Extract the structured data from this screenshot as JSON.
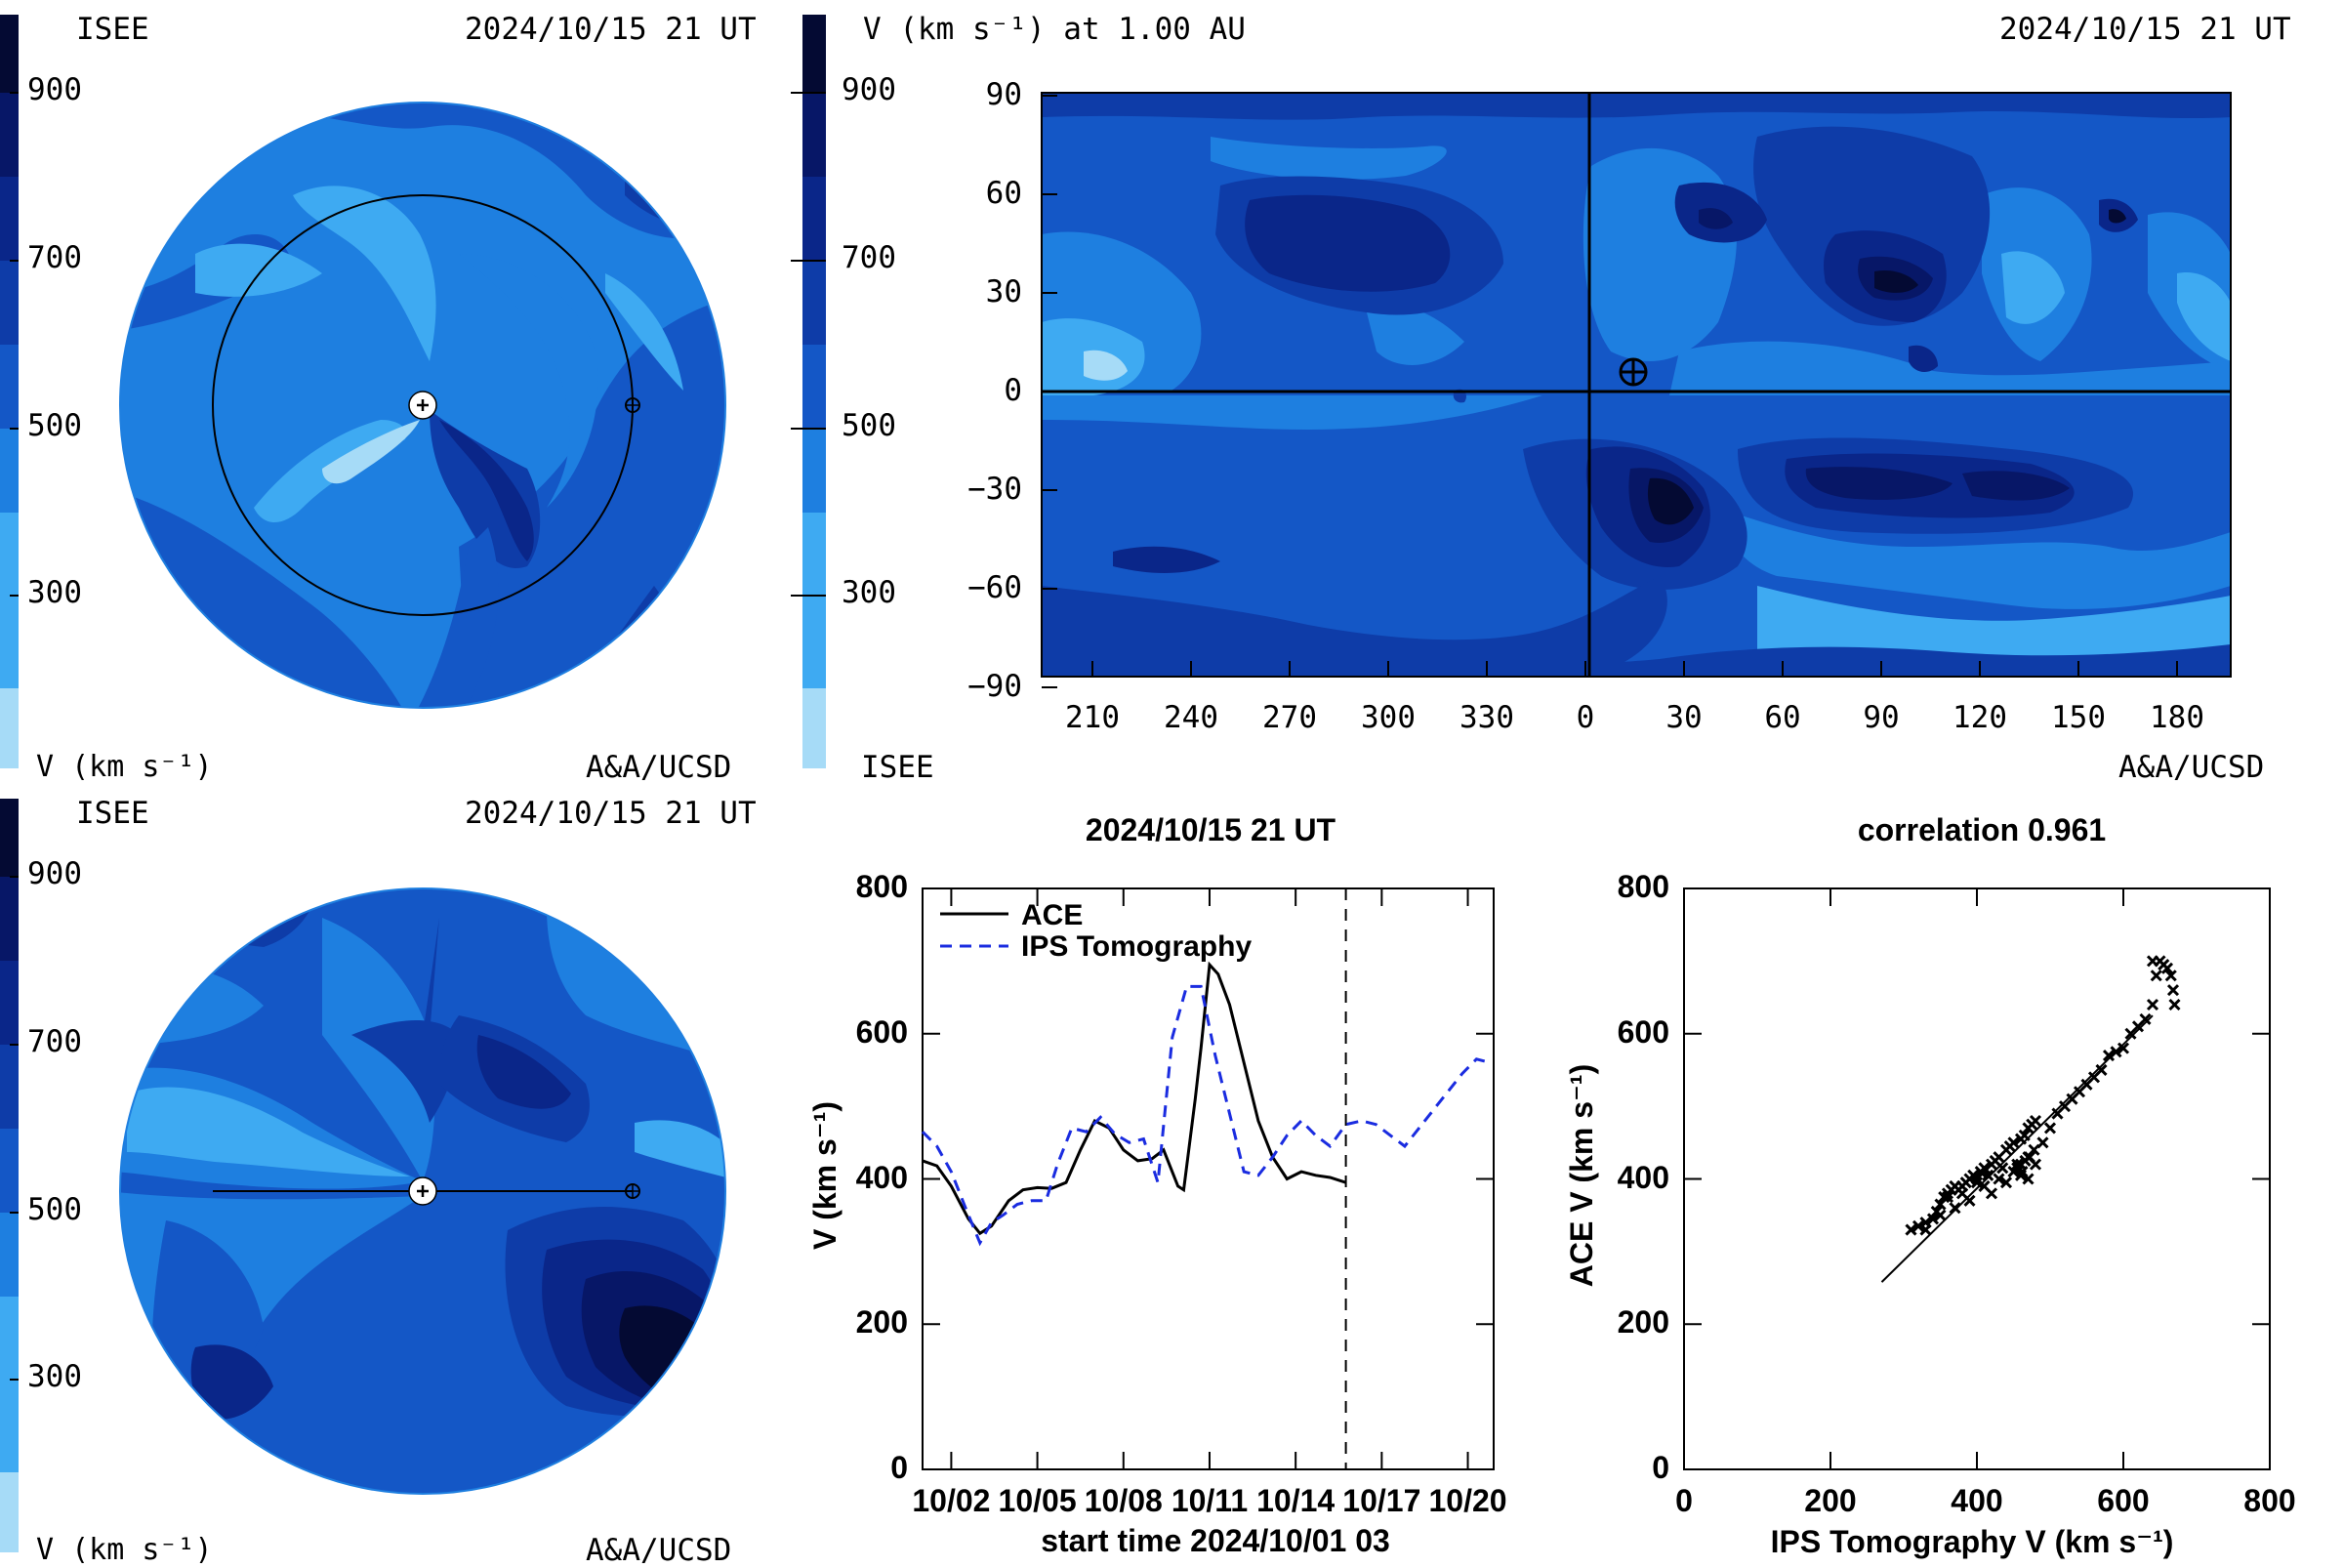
{
  "colors": {
    "c1": "#a6dbf7",
    "c2": "#3eaaf2",
    "c3": "#1e7fe0",
    "c4": "#1457c6",
    "c5": "#0e3ca8",
    "c6": "#0a2689",
    "c7": "#071767",
    "c8": "#040a33",
    "ace_line": "#000000",
    "ips_line": "#1a2ce0"
  },
  "panel_tl": {
    "org": "ISEE",
    "time": "2024/10/15 21 UT",
    "scale_ticks": [
      "900",
      "700",
      "500",
      "300"
    ],
    "unit_label": "V (km s⁻¹)",
    "credit": "A&A/UCSD"
  },
  "panel_bl": {
    "org": "ISEE",
    "time": "2024/10/15 21 UT",
    "scale_ticks": [
      "900",
      "700",
      "500",
      "300"
    ],
    "unit_label": "V (km s⁻¹)",
    "credit": "A&A/UCSD"
  },
  "panel_map": {
    "title": "V (km s⁻¹) at 1.00 AU",
    "time": "2024/10/15 21 UT",
    "scale_ticks": [
      "900",
      "700",
      "500",
      "300"
    ],
    "org": "ISEE",
    "credit": "A&A/UCSD",
    "y_ticks": [
      "90",
      "60",
      "30",
      "0",
      "−30",
      "−60",
      "−90"
    ],
    "x_ticks": [
      "210",
      "240",
      "270",
      "300",
      "330",
      "0",
      "30",
      "60",
      "90",
      "120",
      "150",
      "180"
    ]
  },
  "chart_data": [
    {
      "type": "line",
      "title": "2024/10/15 21 UT",
      "xlabel": "start time 2024/10/01 03",
      "ylabel": "V (km s⁻¹)",
      "x_ticks": [
        "10/02",
        "10/05",
        "10/08",
        "10/11",
        "10/14",
        "10/17",
        "10/20"
      ],
      "y_ticks": [
        "0",
        "200",
        "400",
        "600",
        "800"
      ],
      "xlim_days": [
        0,
        19.9
      ],
      "ylim": [
        0,
        800
      ],
      "current_time_marker_day": 14.75,
      "legend": "top-left",
      "series": [
        {
          "name": "ACE",
          "style": "solid",
          "x": [
            0,
            0.5,
            1.0,
            1.6,
            2.0,
            2.4,
            3.0,
            3.5,
            4.0,
            4.5,
            5.0,
            5.5,
            6.0,
            6.5,
            7.0,
            7.5,
            8.0,
            8.4,
            8.9,
            9.1,
            9.5,
            9.7,
            10.0,
            10.3,
            10.7,
            11.2,
            11.7,
            12.2,
            12.7,
            13.2,
            13.7,
            14.2,
            14.75
          ],
          "y": [
            425,
            418,
            390,
            345,
            325,
            335,
            370,
            385,
            388,
            387,
            395,
            440,
            480,
            470,
            440,
            425,
            428,
            440,
            390,
            385,
            510,
            580,
            695,
            682,
            640,
            560,
            480,
            430,
            400,
            410,
            405,
            402,
            395
          ]
        },
        {
          "name": "IPS Tomography",
          "style": "dashed",
          "x": [
            0,
            0.5,
            1.0,
            1.5,
            2.0,
            2.4,
            2.8,
            3.3,
            3.8,
            4.3,
            4.7,
            5.2,
            5.7,
            6.2,
            6.7,
            7.2,
            7.7,
            8.2,
            8.7,
            9.2,
            9.7,
            10.2,
            10.7,
            11.2,
            11.7,
            12.2,
            12.7,
            13.2,
            13.7,
            14.2,
            14.75,
            15.3,
            15.8,
            16.3,
            16.8,
            17.3,
            17.8,
            18.3,
            18.8,
            19.3,
            19.8
          ],
          "y": [
            465,
            445,
            410,
            360,
            312,
            340,
            350,
            365,
            370,
            370,
            420,
            470,
            465,
            485,
            462,
            450,
            455,
            395,
            595,
            665,
            665,
            570,
            490,
            410,
            405,
            430,
            460,
            480,
            460,
            445,
            475,
            480,
            475,
            460,
            445,
            470,
            495,
            520,
            545,
            565,
            560
          ]
        }
      ]
    },
    {
      "type": "scatter",
      "title": "correlation 0.961",
      "xlabel": "IPS Tomography V (km s⁻¹)",
      "ylabel": "ACE V (km s⁻¹)",
      "x_ticks": [
        "0",
        "200",
        "400",
        "600",
        "800"
      ],
      "y_ticks": [
        "0",
        "200",
        "400",
        "600",
        "800"
      ],
      "xlim": [
        0,
        800
      ],
      "ylim": [
        0,
        800
      ],
      "fit_line": {
        "x": [
          270,
          640
        ],
        "y": [
          258,
          625
        ]
      },
      "points": {
        "x": [
          310,
          320,
          330,
          340,
          345,
          350,
          355,
          360,
          365,
          370,
          375,
          380,
          385,
          390,
          395,
          400,
          405,
          410,
          415,
          420,
          425,
          430,
          435,
          440,
          445,
          450,
          455,
          460,
          465,
          470,
          475,
          480,
          478,
          472,
          466,
          460,
          455,
          462,
          470,
          480,
          490,
          500,
          510,
          520,
          530,
          540,
          550,
          560,
          570,
          580,
          590,
          600,
          610,
          620,
          630,
          640,
          645,
          650,
          655,
          660,
          665,
          668,
          670,
          640,
          330,
          350,
          370,
          390,
          410,
          430,
          450,
          470,
          420,
          440,
          460,
          400,
          380,
          360
        ],
        "y": [
          330,
          335,
          340,
          345,
          355,
          365,
          375,
          380,
          385,
          390,
          385,
          380,
          395,
          400,
          405,
          395,
          410,
          415,
          405,
          420,
          425,
          430,
          415,
          440,
          445,
          450,
          420,
          455,
          460,
          470,
          475,
          480,
          440,
          430,
          425,
          420,
          415,
          410,
          400,
          420,
          450,
          470,
          490,
          500,
          510,
          520,
          530,
          540,
          550,
          570,
          575,
          580,
          600,
          610,
          620,
          640,
          680,
          700,
          695,
          690,
          680,
          660,
          640,
          700,
          330,
          350,
          360,
          370,
          390,
          400,
          410,
          430,
          380,
          395,
          405,
          400,
          390,
          375
        ]
      }
    }
  ]
}
